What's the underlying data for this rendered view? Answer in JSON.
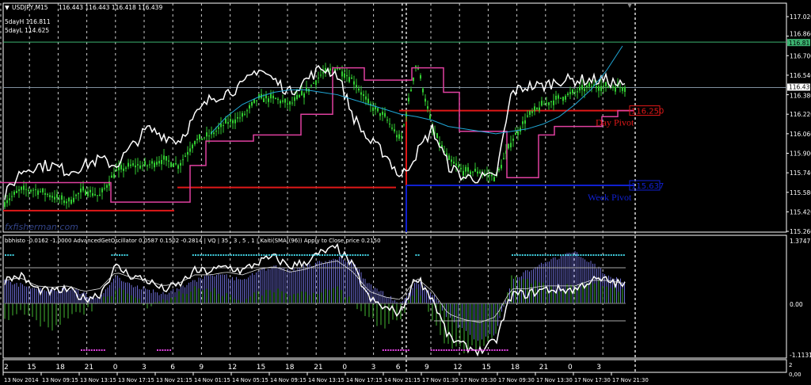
{
  "header": {
    "symbol": "USDJPY,M15",
    "ohlc": "116.443 116.443 116.418 116.439",
    "five_day_high": "5dayH 116.811",
    "five_day_low": "5dayL 114.625"
  },
  "watermark": "fxfisherman.com",
  "indicator_header": "bbhisto -0.0162 -1.0000  AdvancedGetOscillator 0.0587 0.1502 -0.2814 | VQ |  35 , 3 , 5 , 1  |   Kaiti(SMA((96)) Apply to Close price 0.2150",
  "colors": {
    "candle": "#32cd32",
    "white_line": "#ffffff",
    "magenta": "#e040a0",
    "red": "#e01818",
    "blue": "#1020d0",
    "cyan": "#20a8d8",
    "five_day_high": "#3cb371",
    "hist_blue": "#6a6ad0",
    "hist_green": "#3a9a2a",
    "dots_cyan": "#40d0e0",
    "dots_magenta": "#e040e0"
  },
  "chart_data": [
    {
      "type": "line",
      "title": "USDJPY,M15",
      "ylim": [
        115.26,
        117.02
      ],
      "y_ticks": [
        "117.020",
        "116.860",
        "116.700",
        "116.540",
        "116.380",
        "116.220",
        "116.060",
        "115.900",
        "115.740",
        "115.580",
        "115.420",
        "115.260"
      ],
      "current_price": "116.439",
      "five_day_high_price": "116.811",
      "close": [
        115.5,
        115.6,
        115.6,
        115.55,
        115.5,
        115.6,
        115.55,
        115.75,
        115.8,
        115.8,
        115.85,
        115.8,
        116.0,
        116.05,
        116.15,
        116.2,
        116.35,
        116.35,
        116.3,
        116.4,
        116.55,
        116.6,
        116.5,
        116.3,
        116.2,
        116.0,
        116.65,
        116.1,
        115.85,
        115.75,
        115.75,
        115.7,
        116.0,
        116.2,
        116.3,
        116.35,
        116.4,
        116.45,
        116.45,
        116.44
      ],
      "white_line": [
        115.55,
        115.75,
        115.8,
        115.8,
        115.75,
        115.8,
        115.85,
        115.8,
        115.95,
        116.1,
        116.05,
        116.0,
        116.2,
        116.35,
        116.4,
        116.45,
        116.6,
        116.5,
        116.4,
        116.5,
        116.6,
        116.55,
        116.2,
        116.0,
        115.9,
        115.7,
        115.9,
        116.1,
        115.8,
        115.7,
        115.7,
        115.7,
        116.4,
        116.45,
        116.45,
        116.5,
        116.5,
        116.5,
        116.5,
        116.45
      ],
      "magenta_step": [
        115.66,
        115.66,
        115.66,
        115.66,
        115.66,
        115.66,
        115.66,
        115.5,
        115.5,
        115.5,
        115.5,
        115.5,
        115.8,
        116.0,
        116.0,
        116.0,
        116.05,
        116.05,
        116.05,
        116.22,
        116.22,
        116.6,
        116.6,
        116.5,
        116.5,
        116.5,
        116.6,
        116.6,
        116.4,
        116.08,
        116.08,
        116.08,
        115.7,
        115.7,
        116.05,
        116.12,
        116.12,
        116.12,
        116.2,
        116.25
      ],
      "cyan_curve": [
        null,
        null,
        null,
        null,
        null,
        null,
        null,
        null,
        null,
        null,
        null,
        null,
        null,
        116.06,
        116.2,
        116.3,
        116.36,
        116.4,
        116.42,
        116.42,
        116.4,
        116.38,
        116.34,
        116.3,
        116.26,
        116.22,
        116.2,
        116.17,
        116.12,
        116.1,
        116.08,
        116.06,
        116.08,
        116.1,
        116.14,
        116.2,
        116.3,
        116.42,
        116.58,
        116.78
      ],
      "red_step": [
        {
          "from_bar": 0,
          "to_bar": 11,
          "price": 115.43
        },
        {
          "from_bar": 11,
          "to_bar": 25,
          "price": 115.62
        },
        {
          "from_bar": 25,
          "to_bar": 40,
          "price": 116.25
        }
      ],
      "day_pivot": {
        "label": "Day Pivot",
        "value": "116.250"
      },
      "week_pivot": {
        "label": "Week Pivot",
        "value": "115.637"
      }
    },
    {
      "type": "bar",
      "ylim": [
        -1.1131,
        1.3747
      ],
      "y_ticks": [
        "1.3747",
        "0.00",
        "-1.1131"
      ],
      "hist_blue": [
        0.5,
        0.4,
        0.3,
        0.3,
        0.35,
        0.2,
        0.1,
        0.6,
        0.4,
        0.3,
        0.2,
        0.3,
        0.5,
        0.6,
        0.6,
        0.5,
        0.7,
        0.8,
        0.7,
        0.8,
        0.9,
        1.0,
        0.9,
        0.4,
        0.2,
        0.0,
        0.5,
        0.2,
        -0.3,
        -0.6,
        -0.8,
        -0.6,
        0.5,
        0.7,
        0.9,
        1.0,
        1.1,
        0.9,
        0.6,
        0.5
      ],
      "hist_green": [
        -0.3,
        -0.2,
        -0.4,
        -0.5,
        -0.3,
        -0.2,
        0.0,
        0.3,
        0.2,
        -0.1,
        0.1,
        0.2,
        0.3,
        0.3,
        0.2,
        0.1,
        0.2,
        0.3,
        0.2,
        0.2,
        0.3,
        0.3,
        0.0,
        -0.3,
        -0.5,
        -0.3,
        0.3,
        -0.4,
        -0.9,
        -1.0,
        -0.9,
        -0.6,
        0.6,
        0.5,
        0.4,
        0.3,
        0.4,
        0.5,
        0.4,
        0.3
      ],
      "white_line": [
        0.5,
        0.6,
        0.3,
        0.25,
        0.3,
        0.1,
        0.2,
        0.8,
        0.6,
        0.5,
        0.3,
        0.4,
        0.7,
        0.7,
        0.8,
        0.7,
        0.9,
        1.0,
        0.8,
        0.9,
        1.1,
        1.2,
        0.8,
        0.1,
        -0.1,
        -0.2,
        0.6,
        0.1,
        -0.7,
        -0.9,
        -1.0,
        -0.8,
        0.2,
        0.2,
        0.3,
        0.3,
        0.3,
        0.5,
        0.5,
        0.4
      ]
    }
  ],
  "hour_axis": [
    "2",
    "15",
    "18",
    "21",
    "0",
    "3",
    "6",
    "9",
    "12",
    "15",
    "18",
    "21",
    "0",
    "3",
    "6",
    "9",
    "12",
    "15",
    "18",
    "21",
    "0",
    "3"
  ],
  "corner_labels": [
    "2",
    "0,00"
  ],
  "date_axis": [
    "13 Nov 2014",
    "13 Nov 09:15",
    "13 Nov 13:15",
    "13 Nov 17:15",
    "13 Nov 21:15",
    "14 Nov 01:15",
    "14 Nov 05:15",
    "14 Nov 09:15",
    "14 Nov 13:15",
    "14 Nov 17:15",
    "14 Nov 21:15",
    "17 Nov 01:30",
    "17 Nov 05:30",
    "17 Nov 09:30",
    "17 Nov 13:30",
    "17 Nov 17:30",
    "17 Nov 21:30"
  ]
}
